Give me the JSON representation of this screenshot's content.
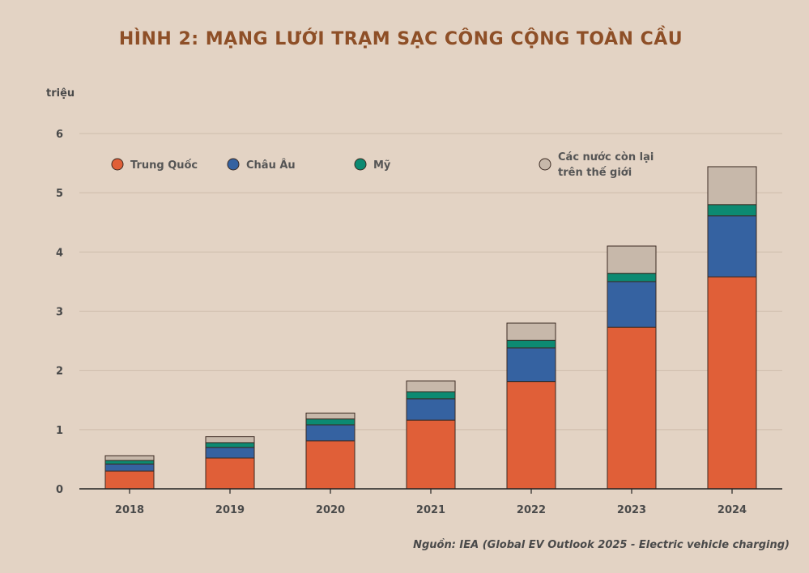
{
  "chart_data": {
    "type": "bar",
    "stacked": true,
    "title": "HÌNH 2: MẠNG LƯỚI TRẠM SẠC CÔNG CỘNG TOÀN CẦU",
    "ylabel": "triệu",
    "categories": [
      "2018",
      "2019",
      "2020",
      "2021",
      "2022",
      "2023",
      "2024"
    ],
    "ylim": [
      0,
      6
    ],
    "yticks": [
      0,
      1,
      2,
      3,
      4,
      5,
      6
    ],
    "grid": true,
    "legend_position": "top",
    "series": [
      {
        "name": "Trung Quốc",
        "color": "#e05f38",
        "values": [
          0.3,
          0.52,
          0.81,
          1.16,
          1.81,
          2.73,
          3.58
        ]
      },
      {
        "name": "Châu Âu",
        "color": "#3562a1",
        "values": [
          0.12,
          0.18,
          0.27,
          0.36,
          0.57,
          0.77,
          1.03
        ]
      },
      {
        "name": "Mỹ",
        "color": "#0c8a72",
        "values": [
          0.06,
          0.08,
          0.1,
          0.12,
          0.13,
          0.14,
          0.19
        ]
      },
      {
        "name": [
          "Các nước còn lại",
          "trên thế giới"
        ],
        "color": "#c7b8aa",
        "values": [
          0.08,
          0.1,
          0.1,
          0.18,
          0.29,
          0.46,
          0.64
        ]
      }
    ]
  },
  "source": "Nguồn: IEA (Global EV Outlook 2025 - Electric vehicle charging)"
}
